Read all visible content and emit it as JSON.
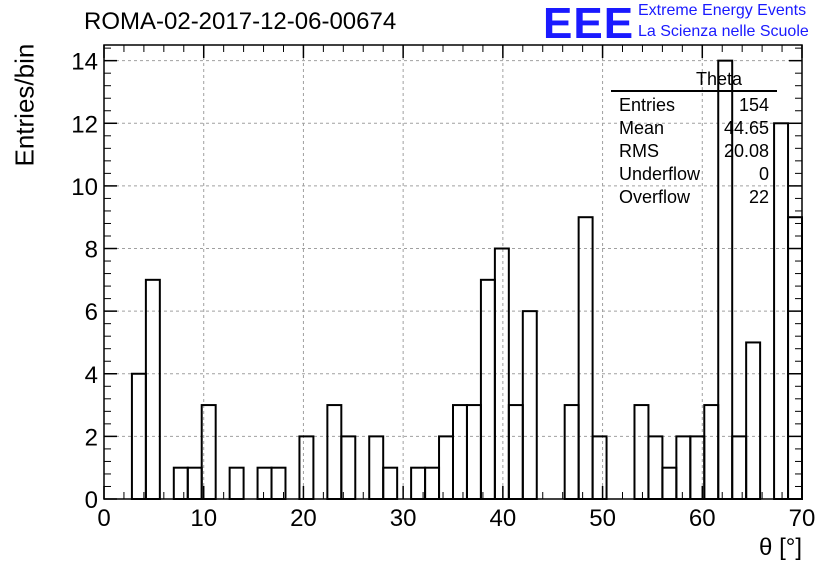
{
  "header": {
    "run_title": "ROMA-02-2017-12-06-00674",
    "logo": "EEE",
    "logo_line1": "Extreme Energy Events",
    "logo_line2": "La Scienza nelle Scuole",
    "logo_color": "#1a1aff"
  },
  "stats": {
    "title": "Theta",
    "rows": [
      {
        "label": "Entries",
        "value": "154"
      },
      {
        "label": "Mean",
        "value": "44.65"
      },
      {
        "label": "RMS",
        "value": "20.08"
      },
      {
        "label": "Underflow",
        "value": "0"
      },
      {
        "label": "Overflow",
        "value": "22"
      }
    ]
  },
  "chart_data": {
    "type": "bar",
    "style": "step-histogram",
    "title": "ROMA-02-2017-12-06-00674",
    "xlabel": "θ [°]",
    "ylabel": "Entries/bin",
    "xlim": [
      0,
      70
    ],
    "ylim": [
      0,
      14.5
    ],
    "bin_width": 1.4,
    "bin_low_edges": [
      0,
      1.4,
      2.8,
      4.2,
      5.6,
      7,
      8.4,
      9.8,
      11.2,
      12.6,
      14,
      15.4,
      16.8,
      18.2,
      19.6,
      21,
      22.4,
      23.8,
      25.2,
      26.6,
      28,
      29.4,
      30.8,
      32.2,
      33.6,
      35,
      36.4,
      37.8,
      39.2,
      40.6,
      42,
      43.4,
      44.8,
      46.2,
      47.6,
      49,
      50.4,
      51.8,
      53.2,
      54.6,
      56,
      57.4,
      58.8,
      60.2,
      61.6,
      63,
      64.4,
      65.8,
      67.2,
      68.6
    ],
    "values": [
      0,
      0,
      4,
      7,
      0,
      1,
      1,
      3,
      0,
      1,
      0,
      1,
      1,
      0,
      2,
      0,
      3,
      2,
      0,
      2,
      1,
      0,
      1,
      1,
      2,
      3,
      3,
      7,
      8,
      3,
      6,
      0,
      0,
      3,
      9,
      2,
      0,
      0,
      3,
      2,
      1,
      2,
      2,
      3,
      14,
      2,
      5,
      0,
      12,
      9
    ],
    "xticks": [
      0,
      10,
      20,
      30,
      40,
      50,
      60,
      70
    ],
    "yticks": [
      0,
      2,
      4,
      6,
      8,
      10,
      12,
      14
    ],
    "grid": true,
    "line_color": "#000000",
    "grid_color": "#a0a0a0"
  }
}
